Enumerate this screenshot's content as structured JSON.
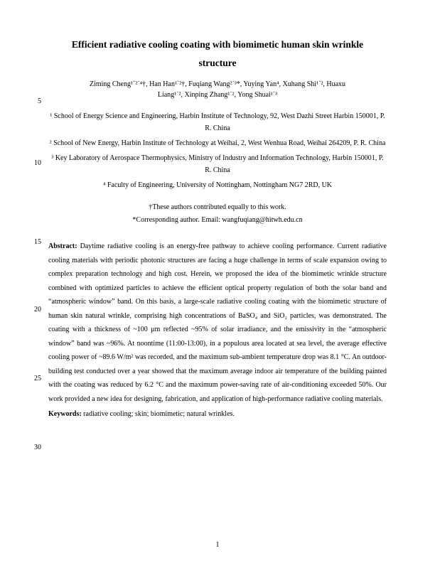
{
  "title_line1": "Efficient radiative cooling coating with biomimetic human skin wrinkle",
  "title_line2": "structure",
  "authors_line1": "Ziming Cheng¹˙²˙⁴†, Han Han¹˙²†, Fuqiang Wang²˙³*, Yuying Yan⁴, Xuhang Shi¹˙², Huaxu",
  "authors_line2": "Liang¹˙², Xinping Zhang¹˙², Yong Shuai¹˙³",
  "affil1": "¹ School of Energy Science and Engineering, Harbin Institute of Technology, 92, West Dazhi Street Harbin 150001, P. R. China",
  "affil2": "² School of New Energy, Harbin Institute of Technology at Weihai, 2, West Wenhua Road, Weihai 264209, P. R. China",
  "affil3": "³ Key Laboratory of Aerospace Thermophysics, Ministry of Industry and Information Technology, Harbin 150001, P. R. China",
  "affil4": "⁴ Faculty of Engineering, University of Nottingham, Nottingham NG7 2RD, UK",
  "note1": "†These authors contributed equally to this work.",
  "note2": "*Corresponding author. Email: wangfuqiang@hitwh.edu.cn",
  "abstract_label": "Abstract:",
  "abstract_text": " Daytime radiative cooling is an energy-free pathway to achieve cooling performance. Current radiative cooling materials with periodic photonic structures are facing a huge challenge in terms of scale expansion owing to complex preparation technology and high cost. Herein, we proposed the idea of the biomimetic wrinkle structure combined with optimized particles to achieve the efficient optical property regulation of both the solar band and “atmospheric window” band. On this basis, a large-scale radiative cooling coating with the biomimetic structure of human skin natural wrinkle, comprising high concentrations of BaSO₄ and SiO₂ particles, was demonstrated. The coating with a thickness of ~100 μm reflected ~95% of solar irradiance, and the emissivity in the “atmospheric window” band was ~96%. At noontime (11:00-13:00), in a populous area located at sea level, the average effective cooling power of ~89.6 W/m² was recorded, and the maximum sub-ambient temperature drop was 8.1 °C. An outdoor-building test conducted over a year showed that the maximum average indoor air temperature of the building painted with the coating was reduced by 6.2 °C and the maximum power-saving rate of air-conditioning exceeded 50%. Our work provided a new idea for designing, fabrication, and application of high-performance radiative cooling materials.",
  "keywords_label": "Keywords:",
  "keywords_text": " radiative cooling; skin; biomimetic; natural wrinkles.",
  "pagenum": "1",
  "line_nums": {
    "n5": "5",
    "n10": "10",
    "n15": "15",
    "n20": "20",
    "n25": "25",
    "n30": "30"
  },
  "line_positions": {
    "p5": 137,
    "p10": 224,
    "p15": 335,
    "p20": 430,
    "p25": 527,
    "p30": 624
  }
}
